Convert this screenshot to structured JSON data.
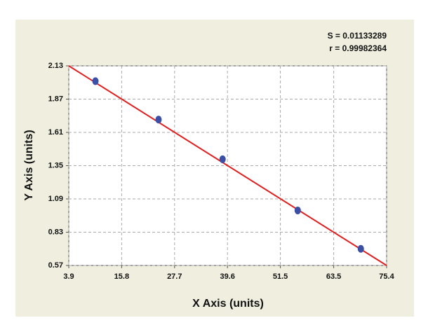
{
  "chart_data": {
    "type": "scatter",
    "xlabel": "X Axis (units)",
    "ylabel": "Y Axis (units)",
    "annotations": [
      "S = 0.01133289",
      "r = 0.99982364"
    ],
    "series": [
      {
        "color": "#3b4fa6",
        "x": [
          9.9,
          24.1,
          38.5,
          55.4,
          69.6
        ],
        "values": [
          2.01,
          1.71,
          1.4,
          1.0,
          0.7
        ]
      }
    ],
    "fit_line": {
      "color": "#e02020",
      "x": [
        3.9,
        75.4
      ],
      "y": [
        2.13,
        0.57
      ]
    },
    "xlim": [
      3.9,
      75.4
    ],
    "ylim": [
      0.57,
      2.13
    ],
    "xticks": [
      3.9,
      15.8,
      27.7,
      39.6,
      51.5,
      63.5,
      75.4
    ],
    "yticks": [
      0.57,
      0.83,
      1.09,
      1.35,
      1.61,
      1.87,
      2.13
    ],
    "grid": true
  }
}
